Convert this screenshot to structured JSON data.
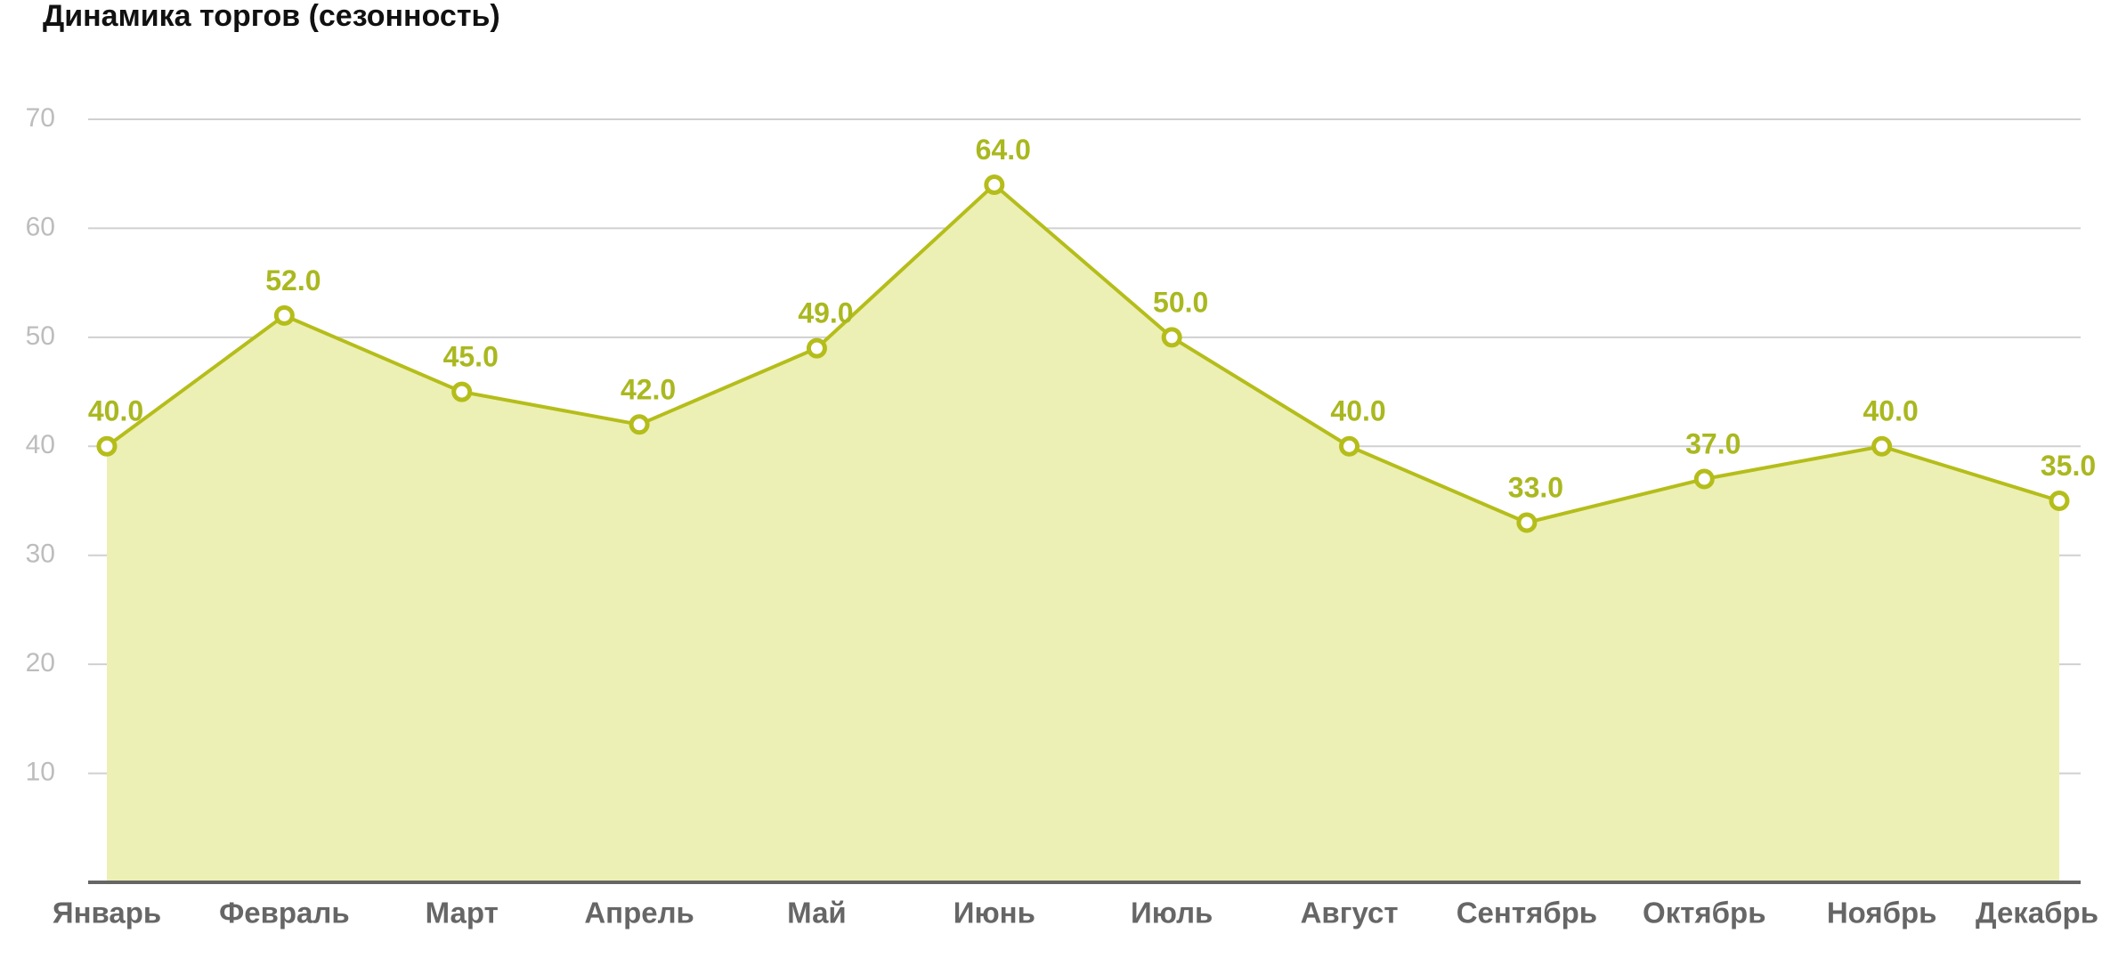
{
  "chart_data": {
    "type": "area",
    "title": "Динамика торгов (сезонность)",
    "categories": [
      "Январь",
      "Февраль",
      "Март",
      "Апрель",
      "Май",
      "Июнь",
      "Июль",
      "Август",
      "Сентябрь",
      "Октябрь",
      "Ноябрь",
      "Декабрь"
    ],
    "values": [
      40,
      52,
      45,
      42,
      49,
      64,
      50,
      40,
      33,
      37,
      40,
      35
    ],
    "value_labels": [
      "40.0",
      "52.0",
      "45.0",
      "42.0",
      "49.0",
      "64.0",
      "50.0",
      "40.0",
      "33.0",
      "37.0",
      "40.0",
      "35.0"
    ],
    "color": "#b5bd1a",
    "fill_color": "#ecf0b4",
    "ylim": [
      0,
      70
    ],
    "yticks": [
      10,
      20,
      30,
      40,
      50,
      60,
      70
    ],
    "grid": true
  }
}
